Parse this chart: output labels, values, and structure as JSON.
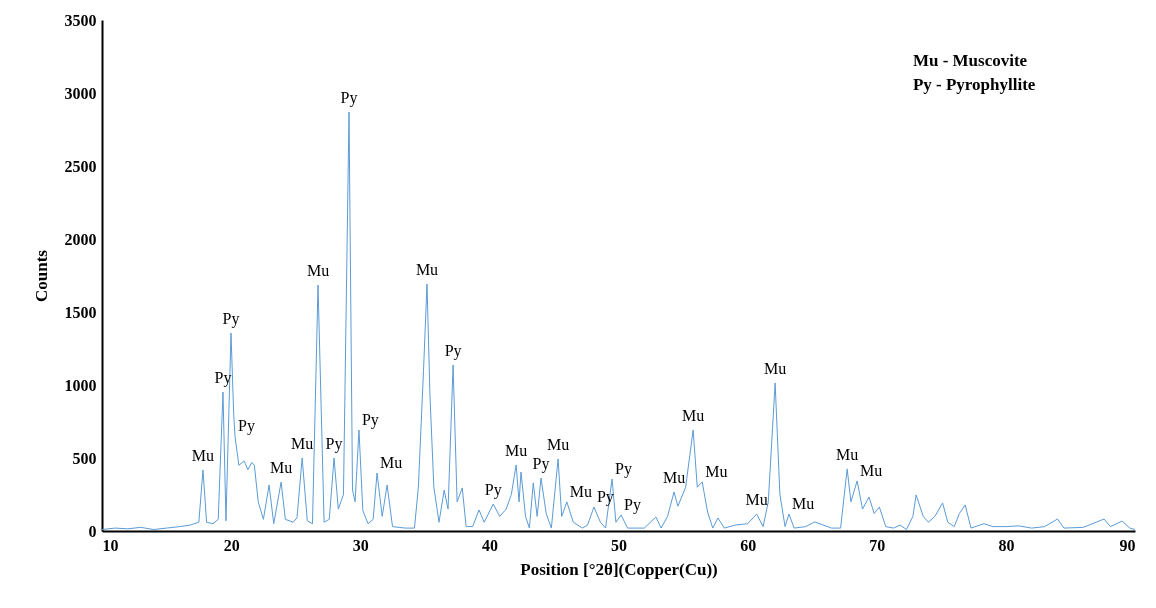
{
  "chart_data": {
    "type": "line",
    "xlabel": "Position [°2θ](Copper(Cu))",
    "ylabel": "Counts",
    "xlim": [
      10,
      90
    ],
    "xticks": [
      10,
      20,
      30,
      40,
      50,
      60,
      70,
      80,
      90
    ],
    "ylim": [
      0,
      3500
    ],
    "yticks": [
      0,
      500,
      1000,
      1500,
      2000,
      2500,
      3000,
      3500
    ],
    "grid": false,
    "marker": "none",
    "line_style": "solid",
    "series": [
      {
        "color": "#5b9bd5",
        "x": [
          10,
          11,
          12,
          13,
          14,
          15,
          16,
          16.8,
          17.5,
          17.82,
          18.1,
          18.6,
          19.0,
          19.37,
          19.6,
          19.99,
          20.2,
          20.3,
          20.6,
          21.0,
          21.3,
          21.6,
          21.8,
          22.1,
          22.5,
          22.94,
          23.3,
          23.87,
          24.2,
          24.8,
          25.1,
          25.5,
          25.9,
          26.3,
          26.73,
          27.2,
          27.6,
          27.97,
          28.3,
          28.7,
          29.13,
          29.4,
          29.6,
          29.9,
          30.2,
          30.6,
          31.0,
          31.3,
          31.7,
          32.08,
          32.5,
          33.5,
          34.2,
          34.5,
          34.9,
          35.17,
          35.4,
          35.7,
          36.1,
          36.5,
          36.8,
          37.19,
          37.5,
          37.9,
          38.2,
          38.7,
          39.2,
          39.6,
          40.3,
          40.8,
          41.3,
          41.7,
          42.07,
          42.3,
          42.45,
          42.8,
          43.1,
          43.4,
          43.7,
          44.0,
          44.4,
          44.8,
          45.32,
          45.6,
          46.0,
          46.5,
          47.2,
          47.6,
          48.1,
          48.6,
          49.0,
          49.5,
          49.8,
          50.2,
          50.7,
          52.0,
          52.9,
          53.3,
          53.8,
          54.3,
          54.6,
          55.2,
          55.78,
          56.1,
          56.48,
          56.9,
          57.3,
          57.7,
          58.2,
          59.0,
          60.0,
          60.7,
          61.2,
          61.6,
          62.13,
          62.5,
          62.9,
          63.2,
          63.6,
          64.5,
          65.2,
          66.5,
          67.2,
          67.71,
          68.0,
          68.48,
          68.9,
          69.4,
          69.8,
          70.2,
          70.7,
          71.3,
          71.8,
          72.3,
          72.8,
          73.05,
          73.6,
          74.0,
          74.5,
          75.1,
          75.5,
          76.0,
          76.4,
          76.85,
          77.3,
          78.3,
          79,
          80,
          81,
          82,
          83,
          84,
          84.5,
          86,
          87.6,
          88.1,
          89.0,
          89.6,
          90
        ],
        "values": [
          10,
          20,
          15,
          25,
          10,
          20,
          30,
          40,
          60,
          418,
          60,
          50,
          80,
          952,
          70,
          1356,
          800,
          650,
          450,
          480,
          420,
          470,
          450,
          200,
          80,
          315,
          50,
          335,
          80,
          60,
          90,
          500,
          70,
          50,
          1685,
          60,
          80,
          500,
          150,
          250,
          2870,
          280,
          200,
          692,
          140,
          50,
          80,
          397,
          100,
          315,
          30,
          20,
          20,
          300,
          1100,
          1692,
          925,
          300,
          60,
          280,
          150,
          1137,
          200,
          295,
          30,
          30,
          144,
          60,
          185,
          100,
          150,
          250,
          452,
          200,
          404,
          100,
          20,
          329,
          100,
          363,
          120,
          20,
          493,
          100,
          199,
          60,
          20,
          40,
          164,
          60,
          20,
          356,
          60,
          110,
          20,
          20,
          96,
          20,
          100,
          267,
          170,
          300,
          692,
          300,
          336,
          130,
          20,
          89,
          20,
          40,
          50,
          116,
          30,
          200,
          1014,
          250,
          30,
          116,
          20,
          30,
          62,
          20,
          20,
          425,
          200,
          343,
          150,
          233,
          120,
          164,
          30,
          20,
          41,
          10,
          100,
          247,
          100,
          60,
          100,
          192,
          60,
          30,
          120,
          178,
          20,
          50,
          30,
          30,
          35,
          20,
          30,
          82,
          20,
          25,
          82,
          30,
          68,
          20,
          10
        ]
      }
    ],
    "annotations": [
      "Mu - Muscovite",
      "Py - Pyrophyllite",
      {
        "text": "Mu",
        "x": 17.82,
        "y": 418
      },
      {
        "text": "Py",
        "x": 19.37,
        "y": 952
      },
      {
        "text": "Py",
        "x": 19.99,
        "y": 1356
      },
      {
        "text": "Py",
        "x": 20.3,
        "y": 650
      },
      {
        "text": "Mu",
        "x": 23.87,
        "y": 335
      },
      {
        "text": "Mu",
        "x": 25.5,
        "y": 500
      },
      {
        "text": "Mu",
        "x": 26.73,
        "y": 1685
      },
      {
        "text": "Py",
        "x": 27.97,
        "y": 500
      },
      {
        "text": "Py",
        "x": 29.13,
        "y": 2870
      },
      {
        "text": "Py",
        "x": 29.9,
        "y": 692
      },
      {
        "text": "Mu",
        "x": 31.3,
        "y": 397
      },
      {
        "text": "Mu",
        "x": 35.17,
        "y": 1692
      },
      {
        "text": "Py",
        "x": 37.19,
        "y": 1137
      },
      {
        "text": "Py",
        "x": 40.3,
        "y": 185
      },
      {
        "text": "Mu",
        "x": 42.07,
        "y": 452
      },
      {
        "text": "Py",
        "x": 44.0,
        "y": 363
      },
      {
        "text": "Mu",
        "x": 45.32,
        "y": 493
      },
      {
        "text": "Mu",
        "x": 46.0,
        "y": 199
      },
      {
        "text": "Py",
        "x": 48.1,
        "y": 164
      },
      {
        "text": "Py",
        "x": 49.5,
        "y": 356
      },
      {
        "text": "Py",
        "x": 50.2,
        "y": 110
      },
      {
        "text": "Mu",
        "x": 54.3,
        "y": 267
      },
      {
        "text": "Mu",
        "x": 55.78,
        "y": 692
      },
      {
        "text": "Mu",
        "x": 56.48,
        "y": 336
      },
      {
        "text": "Mu",
        "x": 60.7,
        "y": 116
      },
      {
        "text": "Mu",
        "x": 62.13,
        "y": 1014
      },
      {
        "text": "Mu",
        "x": 63.2,
        "y": 116
      },
      {
        "text": "Mu",
        "x": 67.71,
        "y": 425
      },
      {
        "text": "Mu",
        "x": 68.48,
        "y": 343
      }
    ]
  }
}
